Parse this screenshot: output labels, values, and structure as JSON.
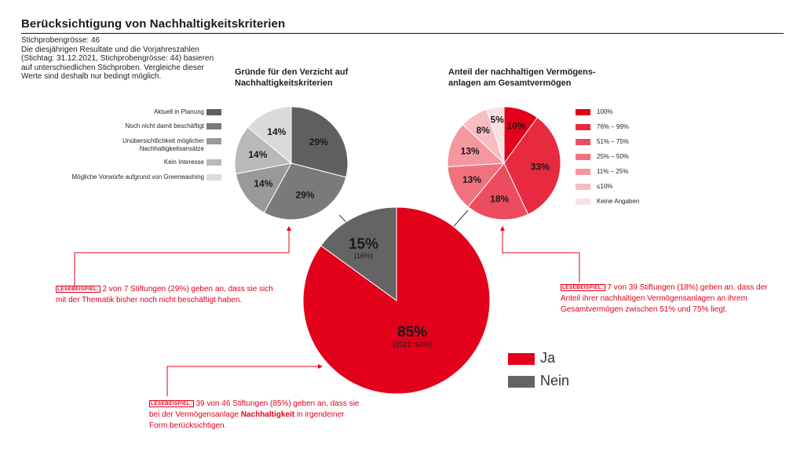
{
  "header": {
    "title": "Berücksichtigung von Nachhaltigkeitskriterien",
    "note_lines": [
      "Stichprobengrösse: 46",
      "Die diesjährigen Resultate und die Vorjahreszahlen",
      "(Stichtag: 31.12.2021, Stichprobengrösse: 44) basieren",
      "auf unterschiedlichen Stichproben. Vergleiche dieser",
      "Werte sind deshalb nur bedingt möglich."
    ]
  },
  "chart_data": [
    {
      "type": "pie",
      "id": "main",
      "categories": [
        "Ja",
        "Nein"
      ],
      "values": [
        85,
        15
      ],
      "data_labels": [
        "85%",
        "15%"
      ],
      "previous_labels": [
        "(2021: 84%)",
        "(16%)"
      ],
      "colors": [
        "#e2001a",
        "#646464"
      ]
    },
    {
      "type": "pie",
      "id": "reasons",
      "title_lines": [
        "Gründe für den Verzicht auf",
        "Nachhaltigkeitskriterien"
      ],
      "categories": [
        "Aktuell in Planung",
        "Noch nicht damit beschäftigt",
        "Unübersichtlichkeit möglicher Nachhaltigkeitsansätze",
        "Kein Interesse",
        "Mögliche Vorwürfe aufgrund von Greenwashing"
      ],
      "legend_lines": [
        [
          "Aktuell in Planung"
        ],
        [
          "Noch nicht damit beschäftigt"
        ],
        [
          "Unübersichtlichkeit möglicher",
          "Nachhaltigkeitsansätze"
        ],
        [
          "Kein Interesse"
        ],
        [
          "Mögliche Vorwürfe aufgrund von Greenwashing"
        ]
      ],
      "values": [
        29,
        29,
        14,
        14,
        14
      ],
      "data_labels": [
        "29%",
        "29%",
        "14%",
        "14%",
        "14%"
      ],
      "colors": [
        "#5f5f5f",
        "#7a7a7a",
        "#999999",
        "#b9b9b9",
        "#dadada"
      ],
      "legend_position": "left"
    },
    {
      "type": "pie",
      "id": "share",
      "title_lines": [
        "Anteil der nachhaltigen Vermögens-",
        "anlagen am Gesamtvermögen"
      ],
      "categories": [
        "100%",
        "76% – 99%",
        "51% – 75%",
        "25% – 50%",
        "11% – 25%",
        "≤10%",
        "Keine Angaben"
      ],
      "values": [
        10,
        33,
        18,
        13,
        13,
        8,
        5
      ],
      "data_labels": [
        "10%",
        "33%",
        "18%",
        "13%",
        "13%",
        "8%",
        "5%"
      ],
      "colors": [
        "#e2001a",
        "#e72a3d",
        "#ec4d5e",
        "#f0727f",
        "#f497a0",
        "#f8bdc3",
        "#fbe0e3"
      ],
      "legend_position": "right"
    }
  ],
  "legend_main": [
    {
      "label": "Ja",
      "color": "#e2001a"
    },
    {
      "label": "Nein",
      "color": "#646464"
    }
  ],
  "annotations": {
    "tag": "LESEBEISPIEL:",
    "left": [
      "2 von 7 Stiftungen (29%) geben an, dass sie sich",
      "mit der Thematik bisher noch nicht beschäftigt haben."
    ],
    "right": [
      "7 von 39 Stiftungen (18%) geben an, dass der",
      "Anteil ihrer nachhaltigen Vermögensanlagen an ihrem",
      "Gesamtvermögen zwischen 51% und 75% liegt."
    ],
    "bottom": {
      "line1": "39 von 46 Stiftungen (85%) geben an, dass sie",
      "line2_pre": "bei der Vermögensanlage ",
      "line2_bold": "Nachhaltigkeit",
      "line2_post": " in irgendeiner",
      "line3": "Form berücksichtigen."
    }
  }
}
